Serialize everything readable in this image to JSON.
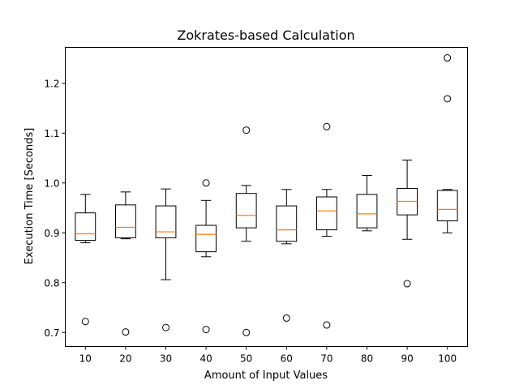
{
  "chart_data": {
    "type": "box",
    "title": "Zokrates-based Calculation",
    "xlabel": "Amount of Input Values",
    "ylabel": "Execution Time [Seconds]",
    "ylim": [
      0.672,
      1.272
    ],
    "yticks": [
      0.7,
      0.8,
      0.9,
      1.0,
      1.1,
      1.2
    ],
    "ytick_labels": [
      "0.7",
      "0.8",
      "0.9",
      "1.0",
      "1.1",
      "1.2"
    ],
    "grid": false,
    "colors": {
      "box": "#000000",
      "median": "#ff7f0e",
      "flier": "#000000"
    },
    "categories": [
      "10",
      "20",
      "30",
      "40",
      "50",
      "60",
      "70",
      "80",
      "90",
      "100"
    ],
    "boxes": [
      {
        "whisker_low": 0.88,
        "q1": 0.885,
        "median": 0.898,
        "q3": 0.94,
        "whisker_high": 0.977,
        "outliers": [
          0.722
        ]
      },
      {
        "whisker_low": 0.888,
        "q1": 0.89,
        "median": 0.911,
        "q3": 0.956,
        "whisker_high": 0.982,
        "outliers": [
          0.701
        ]
      },
      {
        "whisker_low": 0.806,
        "q1": 0.89,
        "median": 0.902,
        "q3": 0.954,
        "whisker_high": 0.988,
        "outliers": [
          0.71
        ]
      },
      {
        "whisker_low": 0.852,
        "q1": 0.862,
        "median": 0.897,
        "q3": 0.915,
        "whisker_high": 0.965,
        "outliers": [
          0.706,
          1.0
        ]
      },
      {
        "whisker_low": 0.883,
        "q1": 0.91,
        "median": 0.935,
        "q3": 0.979,
        "whisker_high": 0.995,
        "outliers": [
          0.7,
          1.106
        ]
      },
      {
        "whisker_low": 0.878,
        "q1": 0.883,
        "median": 0.906,
        "q3": 0.954,
        "whisker_high": 0.987,
        "outliers": [
          0.729
        ]
      },
      {
        "whisker_low": 0.893,
        "q1": 0.906,
        "median": 0.944,
        "q3": 0.972,
        "whisker_high": 0.987,
        "outliers": [
          0.715,
          1.113
        ]
      },
      {
        "whisker_low": 0.904,
        "q1": 0.91,
        "median": 0.938,
        "q3": 0.977,
        "whisker_high": 1.015,
        "outliers": []
      },
      {
        "whisker_low": 0.887,
        "q1": 0.936,
        "median": 0.963,
        "q3": 0.989,
        "whisker_high": 1.046,
        "outliers": [
          0.798
        ]
      },
      {
        "whisker_low": 0.9,
        "q1": 0.924,
        "median": 0.947,
        "q3": 0.985,
        "whisker_high": 0.987,
        "outliers": [
          1.169,
          1.251
        ]
      }
    ]
  }
}
